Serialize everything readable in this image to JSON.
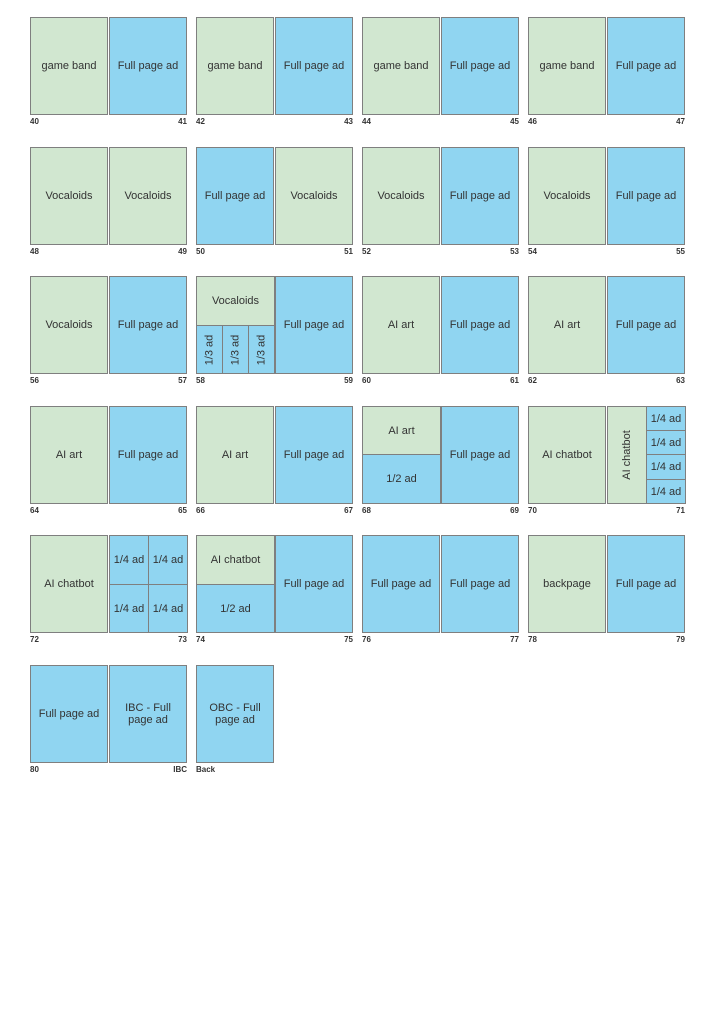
{
  "spreads": [
    {
      "left": {
        "num": "40",
        "label": "game band"
      },
      "right": {
        "num": "41",
        "label": "Full page ad"
      }
    },
    {
      "left": {
        "num": "42",
        "label": "game band"
      },
      "right": {
        "num": "43",
        "label": "Full page ad"
      }
    },
    {
      "left": {
        "num": "44",
        "label": "game band"
      },
      "right": {
        "num": "45",
        "label": "Full page ad"
      }
    },
    {
      "left": {
        "num": "46",
        "label": "game band"
      },
      "right": {
        "num": "47",
        "label": "Full page ad"
      }
    },
    {
      "left": {
        "num": "48",
        "label": "Vocaloids"
      },
      "right": {
        "num": "49",
        "label": "Vocaloids"
      }
    },
    {
      "left": {
        "num": "50",
        "label": "Full page ad"
      },
      "right": {
        "num": "51",
        "label": "Vocaloids"
      }
    },
    {
      "left": {
        "num": "52",
        "label": "Vocaloids"
      },
      "right": {
        "num": "53",
        "label": "Full page ad"
      }
    },
    {
      "left": {
        "num": "54",
        "label": "Vocaloids"
      },
      "right": {
        "num": "55",
        "label": "Full page ad"
      }
    },
    {
      "left": {
        "num": "56",
        "label": "Vocaloids"
      },
      "right": {
        "num": "57",
        "label": "Full page ad"
      }
    },
    {
      "left": {
        "num": "58",
        "top": "Vocaloids",
        "thirds": [
          "1/3 ad",
          "1/3 ad",
          "1/3 ad"
        ]
      },
      "right": {
        "num": "59",
        "label": "Full page ad"
      }
    },
    {
      "left": {
        "num": "60",
        "label": "AI art"
      },
      "right": {
        "num": "61",
        "label": "Full page ad"
      }
    },
    {
      "left": {
        "num": "62",
        "label": "AI art"
      },
      "right": {
        "num": "63",
        "label": "Full page ad"
      }
    },
    {
      "left": {
        "num": "64",
        "label": "AI art"
      },
      "right": {
        "num": "65",
        "label": "Full page ad"
      }
    },
    {
      "left": {
        "num": "66",
        "label": "AI art"
      },
      "right": {
        "num": "67",
        "label": "Full page ad"
      }
    },
    {
      "left": {
        "num": "68",
        "top": "AI art",
        "bottom": "1/2 ad"
      },
      "right": {
        "num": "69",
        "label": "Full page ad"
      }
    },
    {
      "left": {
        "num": "70",
        "label": "AI chatbot"
      },
      "right": {
        "num": "71",
        "side": "AI chatbot",
        "quarters": [
          "1/4 ad",
          "1/4 ad",
          "1/4 ad",
          "1/4 ad"
        ]
      }
    },
    {
      "left": {
        "num": "72",
        "label": "AI chatbot"
      },
      "right": {
        "num": "73",
        "quarters": [
          "1/4 ad",
          "1/4 ad",
          "1/4 ad",
          "1/4 ad"
        ]
      }
    },
    {
      "left": {
        "num": "74",
        "top": "AI chatbot",
        "bottom": "1/2 ad"
      },
      "right": {
        "num": "75",
        "label": "Full page ad"
      }
    },
    {
      "left": {
        "num": "76",
        "label": "Full page ad"
      },
      "right": {
        "num": "77",
        "label": "Full page ad"
      }
    },
    {
      "left": {
        "num": "78",
        "label": "backpage"
      },
      "right": {
        "num": "79",
        "label": "Full page ad"
      }
    },
    {
      "left": {
        "num": "80",
        "label": "Full page ad"
      },
      "right": {
        "num": "IBC",
        "label": "IBC - Full page ad"
      }
    },
    {
      "single": {
        "num": "Back",
        "label": "OBC - Full page ad"
      }
    }
  ],
  "colors": {
    "content": "#d1e7d0",
    "ad": "#90d5f1",
    "border": "#7f7f7f"
  }
}
